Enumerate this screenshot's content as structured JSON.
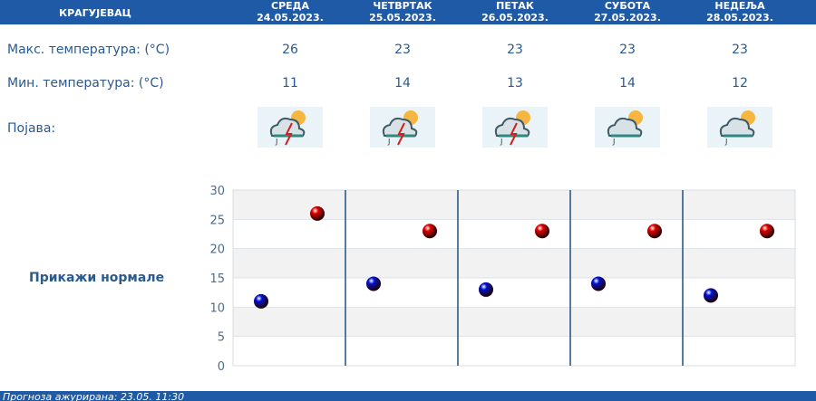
{
  "header": {
    "city": "КРАГУЈЕВАЦ",
    "days": [
      {
        "name": "СРЕДА",
        "date": "24.05.2023."
      },
      {
        "name": "ЧЕТВРТАК",
        "date": "25.05.2023."
      },
      {
        "name": "ПЕТАК",
        "date": "26.05.2023."
      },
      {
        "name": "СУБОТА",
        "date": "27.05.2023."
      },
      {
        "name": "НЕДЕЉА",
        "date": "28.05.2023."
      }
    ]
  },
  "rows": {
    "max_label": "Макс. температура: (°C)",
    "min_label": "Мин. температура: (°C)",
    "phenomenon_label": "Појава:"
  },
  "max": [
    "26",
    "23",
    "23",
    "23",
    "23"
  ],
  "min": [
    "11",
    "14",
    "13",
    "14",
    "12"
  ],
  "icons": [
    "cloud-sun-thunderstorm-icon",
    "cloud-sun-thunderstorm-icon",
    "cloud-sun-thunderstorm-icon",
    "cloud-sun-rain-icon",
    "cloud-sun-rain-icon"
  ],
  "show_normals": "Прикажи нормале",
  "footer": "Прогноза ажурирана:  23.05. 11:30",
  "chart_data": {
    "type": "scatter",
    "ylim": [
      0,
      30
    ],
    "yticks": [
      "0",
      "5",
      "10",
      "15",
      "20",
      "25",
      "30"
    ],
    "categories": [
      "24.05.2023.",
      "25.05.2023.",
      "26.05.2023.",
      "27.05.2023.",
      "28.05.2023."
    ],
    "series": [
      {
        "name": "max",
        "color": "#e00000",
        "values": [
          26,
          23,
          23,
          23,
          23
        ]
      },
      {
        "name": "min",
        "color": "#0010d0",
        "values": [
          11,
          14,
          13,
          14,
          12
        ]
      }
    ]
  }
}
